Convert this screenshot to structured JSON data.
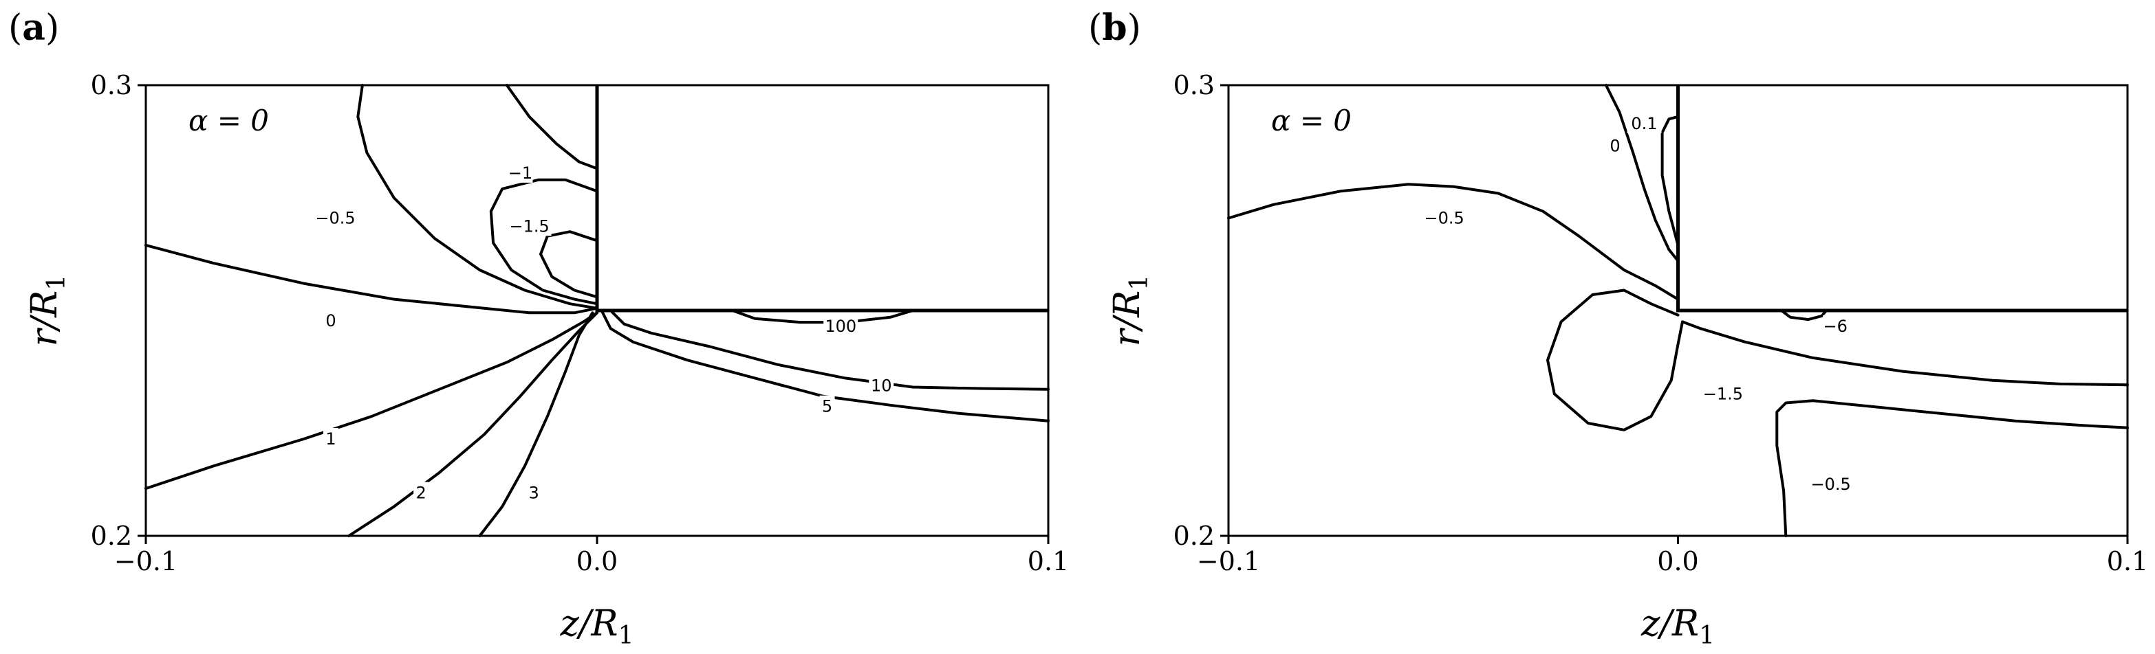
{
  "chart_data": [
    {
      "type": "contour",
      "panel": "(a)",
      "panel_letter": "a",
      "annotation": "α = 0",
      "xlabel": "z/R",
      "xlabel_sub": "1",
      "ylabel": "r/R",
      "ylabel_sub": "1",
      "xlim": [
        -0.1,
        0.1
      ],
      "ylim": [
        0.2,
        0.3
      ],
      "x_ticks": [
        -0.1,
        0.0,
        0.1
      ],
      "x_tick_labels": [
        "−0.1",
        "0.0",
        "0.1"
      ],
      "y_ticks": [
        0.2,
        0.3
      ],
      "y_tick_labels": [
        "0.2",
        "0.3"
      ],
      "grid": false,
      "geometry": {
        "corner_z": 0.0,
        "corner_r": 0.25
      },
      "contours": [
        {
          "label": "−0.5",
          "label_at": [
            -0.058,
            0.2705
          ],
          "points": [
            [
              -0.052,
              0.3
            ],
            [
              -0.053,
              0.293
            ],
            [
              -0.051,
              0.285
            ],
            [
              -0.045,
              0.275
            ],
            [
              -0.036,
              0.266
            ],
            [
              -0.026,
              0.259
            ],
            [
              -0.016,
              0.2545
            ],
            [
              -0.006,
              0.2515
            ],
            [
              0.0,
              0.2505
            ]
          ]
        },
        {
          "label": "−1",
          "label_at": [
            -0.017,
            0.2805
          ],
          "points": [
            [
              -0.02,
              0.3
            ],
            [
              -0.015,
              0.293
            ],
            [
              -0.009,
              0.287
            ],
            [
              -0.004,
              0.283
            ],
            [
              0.0,
              0.2815
            ]
          ]
        },
        {
          "label": "−1.5",
          "label_at": [
            -0.015,
            0.2687
          ],
          "points": [
            [
              0.0,
              0.2765
            ],
            [
              -0.007,
              0.279
            ],
            [
              -0.013,
              0.279
            ],
            [
              -0.021,
              0.277
            ],
            [
              -0.0235,
              0.272
            ],
            [
              -0.023,
              0.265
            ],
            [
              -0.019,
              0.259
            ],
            [
              -0.012,
              0.2545
            ],
            [
              -0.005,
              0.2525
            ],
            [
              0.0,
              0.2515
            ]
          ]
        },
        {
          "label": "",
          "label_at": null,
          "points": [
            [
              0.0,
              0.2655
            ],
            [
              -0.006,
              0.2675
            ],
            [
              -0.011,
              0.2665
            ],
            [
              -0.0125,
              0.2625
            ],
            [
              -0.01,
              0.2575
            ],
            [
              -0.005,
              0.2545
            ],
            [
              0.0,
              0.253
            ]
          ]
        },
        {
          "label": "0",
          "label_at": [
            -0.059,
            0.2477
          ],
          "points": [
            [
              -0.1,
              0.2645
            ],
            [
              -0.085,
              0.2605
            ],
            [
              -0.065,
              0.256
            ],
            [
              -0.045,
              0.2525
            ],
            [
              -0.025,
              0.2505
            ],
            [
              -0.015,
              0.2495
            ],
            [
              -0.005,
              0.2495
            ],
            [
              0.0,
              0.2505
            ]
          ]
        },
        {
          "label": "1",
          "label_at": [
            -0.059,
            0.2215
          ],
          "points": [
            [
              -0.1,
              0.2105
            ],
            [
              -0.085,
              0.2155
            ],
            [
              -0.065,
              0.2215
            ],
            [
              -0.05,
              0.2265
            ],
            [
              -0.035,
              0.2325
            ],
            [
              -0.02,
              0.2385
            ],
            [
              -0.01,
              0.2435
            ],
            [
              -0.003,
              0.2475
            ],
            [
              0.0,
              0.2495
            ]
          ]
        },
        {
          "label": "2",
          "label_at": [
            -0.039,
            0.2095
          ],
          "points": [
            [
              -0.055,
              0.2
            ],
            [
              -0.045,
              0.2065
            ],
            [
              -0.035,
              0.214
            ],
            [
              -0.025,
              0.2225
            ],
            [
              -0.017,
              0.231
            ],
            [
              -0.01,
              0.239
            ],
            [
              -0.004,
              0.2455
            ],
            [
              0.0,
              0.2495
            ]
          ]
        },
        {
          "label": "3",
          "label_at": [
            -0.014,
            0.2095
          ],
          "points": [
            [
              -0.026,
              0.2
            ],
            [
              -0.021,
              0.2065
            ],
            [
              -0.016,
              0.2155
            ],
            [
              -0.011,
              0.2265
            ],
            [
              -0.007,
              0.2365
            ],
            [
              -0.004,
              0.2445
            ],
            [
              -0.001,
              0.2495
            ]
          ]
        },
        {
          "label": "100",
          "label_at": [
            0.054,
            0.2465
          ],
          "points": [
            [
              0.03,
              0.25
            ],
            [
              0.035,
              0.2482
            ],
            [
              0.045,
              0.2474
            ],
            [
              0.055,
              0.2474
            ],
            [
              0.065,
              0.2485
            ],
            [
              0.07,
              0.25
            ]
          ]
        },
        {
          "label": "10",
          "label_at": [
            0.063,
            0.2333
          ],
          "points": [
            [
              0.003,
              0.25
            ],
            [
              0.006,
              0.247
            ],
            [
              0.012,
              0.245
            ],
            [
              0.025,
              0.242
            ],
            [
              0.04,
              0.238
            ],
            [
              0.055,
              0.235
            ],
            [
              0.07,
              0.233
            ],
            [
              0.085,
              0.2327
            ],
            [
              0.1,
              0.2325
            ]
          ]
        },
        {
          "label": "5",
          "label_at": [
            0.051,
            0.2287
          ],
          "points": [
            [
              0.001,
              0.25
            ],
            [
              0.003,
              0.246
            ],
            [
              0.008,
              0.243
            ],
            [
              0.02,
              0.239
            ],
            [
              0.035,
              0.235
            ],
            [
              0.05,
              0.231
            ],
            [
              0.065,
              0.229
            ],
            [
              0.08,
              0.2272
            ],
            [
              0.1,
              0.2255
            ]
          ]
        }
      ]
    },
    {
      "type": "contour",
      "panel": "(b)",
      "panel_letter": "b",
      "annotation": "α = 0",
      "xlabel": "z/R",
      "xlabel_sub": "1",
      "ylabel": "r/R",
      "ylabel_sub": "1",
      "xlim": [
        -0.1,
        0.1
      ],
      "ylim": [
        0.2,
        0.3
      ],
      "x_ticks": [
        -0.1,
        0.0,
        0.1
      ],
      "x_tick_labels": [
        "−0.1",
        "0.0",
        "0.1"
      ],
      "y_ticks": [
        0.2,
        0.3
      ],
      "y_tick_labels": [
        "0.2",
        "0.3"
      ],
      "grid": false,
      "geometry": {
        "corner_z": 0.0,
        "corner_r": 0.25
      },
      "contours": [
        {
          "label": "−0.5",
          "label_at": [
            -0.052,
            0.2705
          ],
          "points": [
            [
              -0.1,
              0.2705
            ],
            [
              -0.09,
              0.2735
            ],
            [
              -0.075,
              0.2765
            ],
            [
              -0.06,
              0.278
            ],
            [
              -0.05,
              0.2775
            ],
            [
              -0.04,
              0.276
            ],
            [
              -0.03,
              0.272
            ],
            [
              -0.022,
              0.2665
            ],
            [
              -0.012,
              0.259
            ],
            [
              -0.005,
              0.2555
            ],
            [
              0.0,
              0.2525
            ]
          ]
        },
        {
          "label": "0",
          "label_at": [
            -0.014,
            0.2865
          ],
          "points": [
            [
              -0.016,
              0.3
            ],
            [
              -0.013,
              0.294
            ],
            [
              -0.01,
              0.285
            ],
            [
              -0.0075,
              0.277
            ],
            [
              -0.005,
              0.27
            ],
            [
              -0.002,
              0.2635
            ],
            [
              0.0,
              0.261
            ]
          ]
        },
        {
          "label": "0.1",
          "label_at": [
            -0.0075,
            0.2915
          ],
          "points": [
            [
              0.0,
              0.293
            ],
            [
              -0.002,
              0.2925
            ],
            [
              -0.0035,
              0.2895
            ],
            [
              -0.0035,
              0.28
            ],
            [
              -0.002,
              0.272
            ],
            [
              0.0,
              0.2645
            ]
          ]
        },
        {
          "label": "−1.5",
          "label_at": [
            0.01,
            0.2315
          ],
          "points": [
            [
              0.0,
              0.249
            ],
            [
              -0.006,
              0.2515
            ],
            [
              -0.012,
              0.2545
            ],
            [
              -0.019,
              0.2535
            ],
            [
              -0.026,
              0.2475
            ],
            [
              -0.029,
              0.239
            ],
            [
              -0.0275,
              0.2315
            ],
            [
              -0.02,
              0.225
            ],
            [
              -0.012,
              0.2235
            ],
            [
              -0.006,
              0.2265
            ],
            [
              -0.0015,
              0.2345
            ],
            [
              0.0,
              0.2425
            ],
            [
              0.001,
              0.2475
            ],
            [
              0.005,
              0.246
            ],
            [
              0.015,
              0.243
            ],
            [
              0.03,
              0.2395
            ],
            [
              0.05,
              0.2365
            ],
            [
              0.07,
              0.2345
            ],
            [
              0.085,
              0.2337
            ],
            [
              0.1,
              0.2335
            ]
          ]
        },
        {
          "label": "−0.5",
          "label_at": [
            0.034,
            0.2114
          ],
          "points": [
            [
              0.024,
              0.2
            ],
            [
              0.0235,
              0.21
            ],
            [
              0.022,
              0.22
            ],
            [
              0.022,
              0.2275
            ],
            [
              0.024,
              0.2295
            ],
            [
              0.03,
              0.23
            ],
            [
              0.045,
              0.2285
            ],
            [
              0.06,
              0.227
            ],
            [
              0.075,
              0.2255
            ],
            [
              0.09,
              0.2245
            ],
            [
              0.1,
              0.224
            ]
          ]
        },
        {
          "label": "−6",
          "label_at": [
            0.035,
            0.2465
          ],
          "points": [
            [
              0.023,
              0.25
            ],
            [
              0.025,
              0.2485
            ],
            [
              0.029,
              0.248
            ],
            [
              0.032,
              0.2488
            ],
            [
              0.033,
              0.25
            ]
          ]
        }
      ]
    }
  ]
}
